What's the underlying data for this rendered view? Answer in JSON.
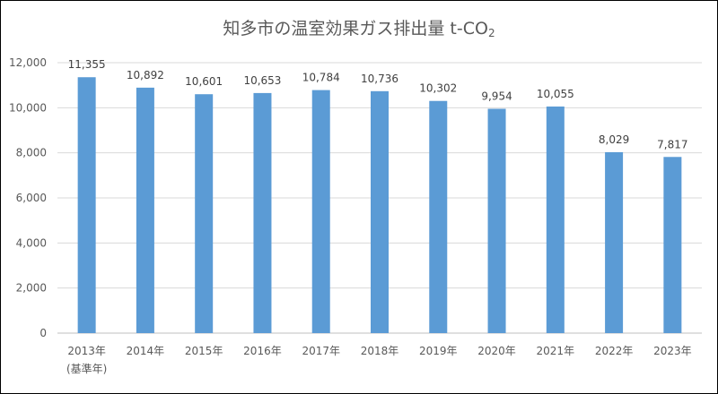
{
  "chart_data": {
    "type": "bar",
    "title": "知多市の温室効果ガス排出量 t-CO",
    "title_subscript": "2",
    "categories": [
      "2013年",
      "2014年",
      "2015年",
      "2016年",
      "2017年",
      "2018年",
      "2019年",
      "2020年",
      "2021年",
      "2022年",
      "2023年"
    ],
    "category_notes": [
      "(基準年)",
      "",
      "",
      "",
      "",
      "",
      "",
      "",
      "",
      "",
      ""
    ],
    "values": [
      11355,
      10892,
      10601,
      10653,
      10784,
      10736,
      10302,
      9954,
      10055,
      8029,
      7817
    ],
    "data_labels": [
      "11,355",
      "10,892",
      "10,601",
      "10,653",
      "10,784",
      "10,736",
      "10,302",
      "9,954",
      "10,055",
      "8,029",
      "7,817"
    ],
    "y_ticks": [
      0,
      2000,
      4000,
      6000,
      8000,
      10000,
      12000
    ],
    "y_tick_labels": [
      "0",
      "2,000",
      "4,000",
      "6,000",
      "8,000",
      "10,000",
      "12,000"
    ],
    "ylim": [
      0,
      12000
    ],
    "xlabel": "",
    "ylabel": "",
    "grid": true,
    "legend": "none",
    "bar_color": "#5B9BD5",
    "grid_color": "#D9D9D9"
  }
}
